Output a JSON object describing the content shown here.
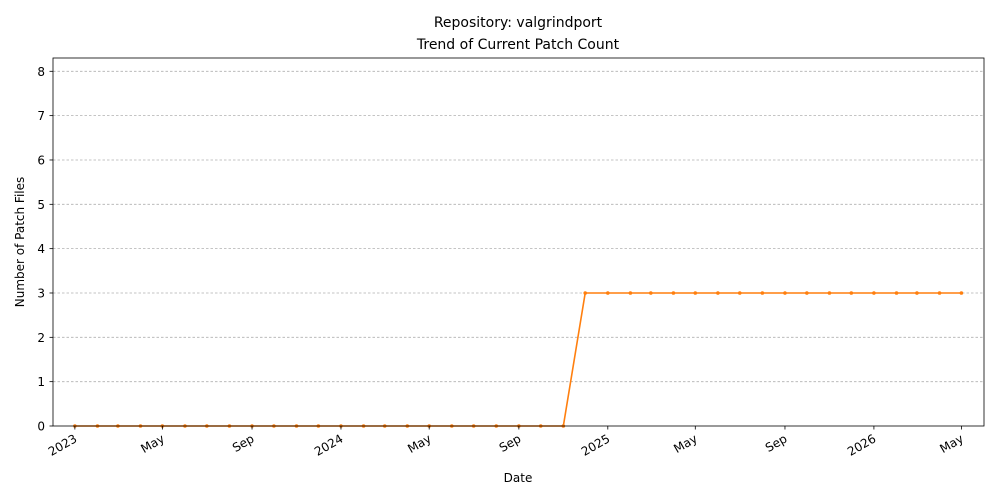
{
  "chart_data": {
    "type": "line",
    "title": "Repository: valgrindport",
    "subtitle": "Trend of Current Patch Count",
    "xlabel": "Date",
    "ylabel": "Number of Patch Files",
    "ylim": [
      0,
      8.3
    ],
    "yticks": [
      0,
      1,
      2,
      3,
      4,
      5,
      6,
      7,
      8
    ],
    "xlim": [
      "2022-12-02",
      "2026-06-01"
    ],
    "xticks": [
      {
        "date": "2023-01-01",
        "label": "2023"
      },
      {
        "date": "2023-05-01",
        "label": "May"
      },
      {
        "date": "2023-09-01",
        "label": "Sep"
      },
      {
        "date": "2024-01-01",
        "label": "2024"
      },
      {
        "date": "2024-05-01",
        "label": "May"
      },
      {
        "date": "2024-09-01",
        "label": "Sep"
      },
      {
        "date": "2025-01-01",
        "label": "2025"
      },
      {
        "date": "2025-05-01",
        "label": "May"
      },
      {
        "date": "2025-09-01",
        "label": "Sep"
      },
      {
        "date": "2026-01-01",
        "label": "2026"
      },
      {
        "date": "2026-05-01",
        "label": "May"
      }
    ],
    "grid": "y",
    "color": "#ff7f0e",
    "series": [
      {
        "name": "",
        "x": [
          "2023-01-01",
          "2023-02-01",
          "2023-03-01",
          "2023-04-01",
          "2023-05-01",
          "2023-06-01",
          "2023-07-01",
          "2023-08-01",
          "2023-09-01",
          "2023-10-01",
          "2023-11-01",
          "2023-12-01",
          "2024-01-01",
          "2024-02-01",
          "2024-03-01",
          "2024-04-01",
          "2024-05-01",
          "2024-06-01",
          "2024-07-01",
          "2024-08-01",
          "2024-09-01",
          "2024-10-01",
          "2024-11-01",
          "2024-12-01",
          "2025-01-01",
          "2025-02-01",
          "2025-03-01",
          "2025-04-01",
          "2025-05-01",
          "2025-06-01",
          "2025-07-01",
          "2025-08-01",
          "2025-09-01",
          "2025-10-01",
          "2025-11-01",
          "2025-12-01",
          "2026-01-01",
          "2026-02-01",
          "2026-03-01",
          "2026-04-01",
          "2026-05-01"
        ],
        "y": [
          0,
          0,
          0,
          0,
          0,
          0,
          0,
          0,
          0,
          0,
          0,
          0,
          0,
          0,
          0,
          0,
          0,
          0,
          0,
          0,
          0,
          0,
          0,
          3,
          3,
          3,
          3,
          3,
          3,
          3,
          3,
          3,
          3,
          3,
          3,
          3,
          3,
          3,
          3,
          3,
          3
        ]
      }
    ]
  }
}
